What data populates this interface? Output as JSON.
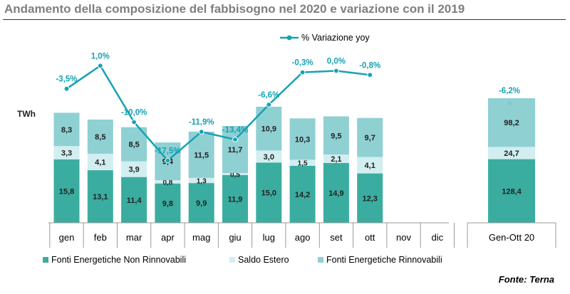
{
  "header": {
    "title": "Andamento della composizione del fabbisogno nel 2020 e variazione con il 2019",
    "source": "Fonte: Terna"
  },
  "colors": {
    "non_rinnovabili": "#3aada0",
    "saldo_estero": "#d2eef0",
    "rinnovabili": "#8fd0d3",
    "line": "#17a2b3",
    "text_dark": "#222222"
  },
  "chart_data": {
    "type": "bar",
    "stacked": true,
    "ylabel": "TWh",
    "categories": [
      "gen",
      "feb",
      "mar",
      "apr",
      "mag",
      "giu",
      "lug",
      "ago",
      "set",
      "ott",
      "nov",
      "dic"
    ],
    "series": [
      {
        "name": "Fonti Energetiche Non Rinnovabili",
        "values": [
          "15,8",
          "13,1",
          "11,4",
          "9,8",
          "9,9",
          "11,9",
          "15,0",
          "14,2",
          "14,9",
          "12,3",
          null,
          null
        ]
      },
      {
        "name": "Saldo Estero",
        "values": [
          "3,3",
          "4,1",
          "3,9",
          "0,8",
          "1,3",
          "0,5",
          "3,0",
          "1,5",
          "2,1",
          "4,1",
          null,
          null
        ]
      },
      {
        "name": "Fonti Energetiche Rinnovabili",
        "values": [
          "8,3",
          "8,5",
          "8,5",
          "9,4",
          "11,5",
          "11,7",
          "10,9",
          "10,3",
          "9,5",
          "9,7",
          null,
          null
        ]
      }
    ],
    "variation": {
      "name": "% Variazione yoy",
      "type": "line",
      "values": [
        -3.5,
        1.0,
        -10.0,
        -17.5,
        -11.9,
        -13.4,
        -6.6,
        -0.3,
        0.0,
        -0.8,
        null,
        null
      ],
      "labels": [
        "-3,5%",
        "1,0%",
        "-10,0%",
        "-17,5%",
        "-11,9%",
        "-13,4%",
        "-6,6%",
        "-0,3%",
        "0,0%",
        "-0,8%",
        "",
        ""
      ]
    },
    "total": {
      "category": "Gen-Ott 20",
      "values": [
        "128,4",
        "24,7",
        "98,2"
      ],
      "variation": -6.2,
      "variation_label": "-6,2%"
    },
    "legend_position": "bottom",
    "grid": false
  }
}
